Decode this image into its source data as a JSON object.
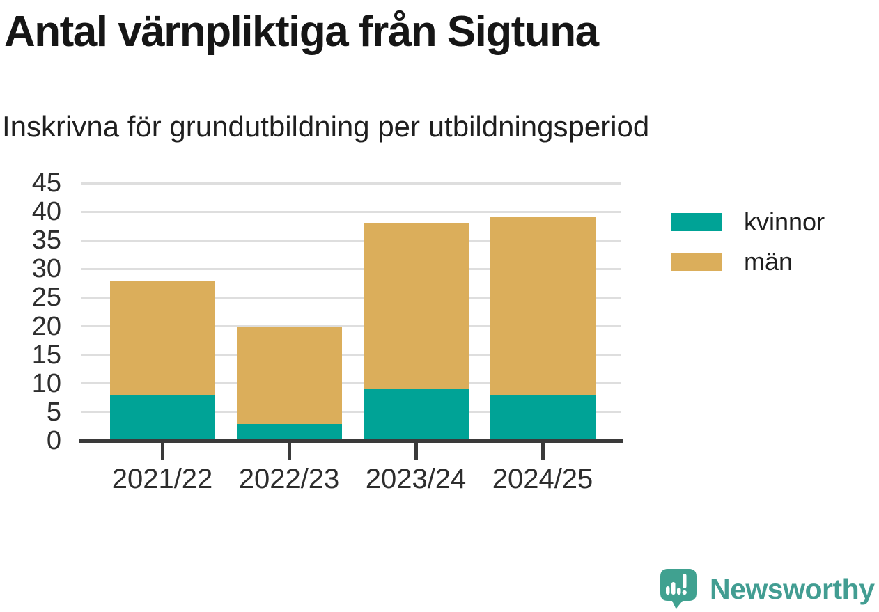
{
  "title": "Antal värnpliktiga från Sigtuna",
  "subtitle": "Inskrivna för grundutbildning per utbildningsperiod",
  "chart_data": {
    "type": "bar",
    "stacked": true,
    "title": "Antal värnpliktiga från Sigtuna",
    "subtitle": "Inskrivna för grundutbildning per utbildningsperiod",
    "categories": [
      "2021/22",
      "2022/23",
      "2023/24",
      "2024/25"
    ],
    "series": [
      {
        "name": "kvinnor",
        "color": "#00a396",
        "values": [
          8,
          3,
          9,
          8
        ]
      },
      {
        "name": "män",
        "color": "#dbae5b",
        "values": [
          20,
          17,
          29,
          31
        ]
      }
    ],
    "totals": [
      28,
      20,
      38,
      39
    ],
    "xlabel": "",
    "ylabel": "",
    "ylim": [
      0,
      45
    ],
    "yticks": [
      0,
      5,
      10,
      15,
      20,
      25,
      30,
      35,
      40,
      45
    ],
    "grid": true,
    "legend_position": "right"
  },
  "branding": {
    "logo_text": "Newsworthy",
    "logo_icon": "newsworthy-bar-chart-bubble-icon",
    "logo_color": "#429d92",
    "logo_icon_color": "#40a190"
  },
  "colors": {
    "kvinnor": "#00a396",
    "man": "#dbae5b",
    "axis": "#3a3a3a",
    "gridline": "#dedede",
    "text": "#1f1f1f"
  }
}
